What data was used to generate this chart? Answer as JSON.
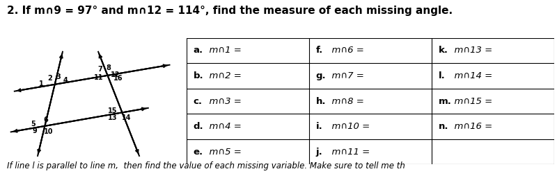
{
  "title_plain": "2. If m∩9 = 97° and m∩12 = 114°, find the measure of each missing angle.",
  "table_cols": [
    [
      "a.  m∩1 =",
      "b.  m∩2 =",
      "c.  m∩3 =",
      "d.  m∩4 =",
      "e.  m∩5 ="
    ],
    [
      "f.  m∩6 =",
      "g.  m∩7 =",
      "h.  m∩8 =",
      "i.  m∩10 =",
      "j.  m∩11 ="
    ],
    [
      "k.  m∩13 =",
      "l.  m∩14 =",
      "m.  m∩15 =",
      "n.  m∩16 =",
      ""
    ]
  ],
  "bg_color": "#ffffff",
  "text_color": "#000000",
  "font_size": 10,
  "title_font_size": 11,
  "bottom_text": "If line l is parallel to line m,  then find the value of each missing variable. Make sure to tell me th"
}
